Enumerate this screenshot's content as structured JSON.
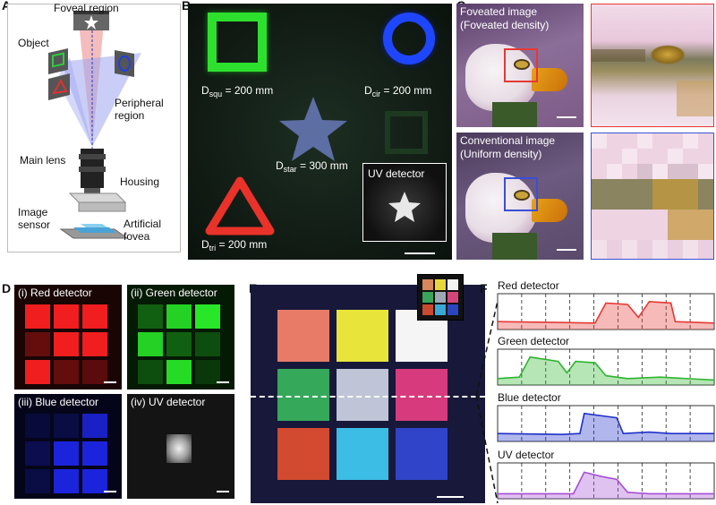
{
  "panels": {
    "A": {
      "label": "A",
      "foveal_region": "Foveal region",
      "object": "Object",
      "peripheral_region": "Peripheral\nregion",
      "main_lens": "Main lens",
      "housing": "Housing",
      "image_sensor": "Image\nsensor",
      "artificial_fovea": "Artificial\nfovea"
    },
    "B": {
      "label": "B",
      "d_squ": {
        "main": "D",
        "sub": "squ",
        "value": " = 200 mm"
      },
      "d_cir": {
        "main": "D",
        "sub": "cir",
        "value": " = 200 mm"
      },
      "d_star": {
        "main": "D",
        "sub": "star",
        "value": " = 300 mm"
      },
      "d_tri": {
        "main": "D",
        "sub": "tri",
        "value": " = 200 mm"
      },
      "uv_detector": "UV detector"
    },
    "C": {
      "label": "C",
      "foveated_title": "Foveated image",
      "foveated_sub": "(Foveated density)",
      "conventional_title": "Conventional image",
      "conventional_sub": "(Uniform density)"
    },
    "D": {
      "label": "D",
      "red": "(i) Red detector",
      "green": "(ii) Green detector",
      "blue": "(iii) Blue detector",
      "uv": "(iv) UV detector"
    },
    "E": {
      "label": "E"
    },
    "F": {
      "label": "F",
      "traces": [
        "Red detector",
        "Green detector",
        "Blue detector",
        "UV detector"
      ]
    }
  },
  "colors": {
    "red": "#e53935",
    "green": "#2fb52f",
    "blue": "#2030c8",
    "uv": "#a64fd6",
    "fovea_box": "#e53935",
    "uniform_box": "#3a4fd6"
  }
}
